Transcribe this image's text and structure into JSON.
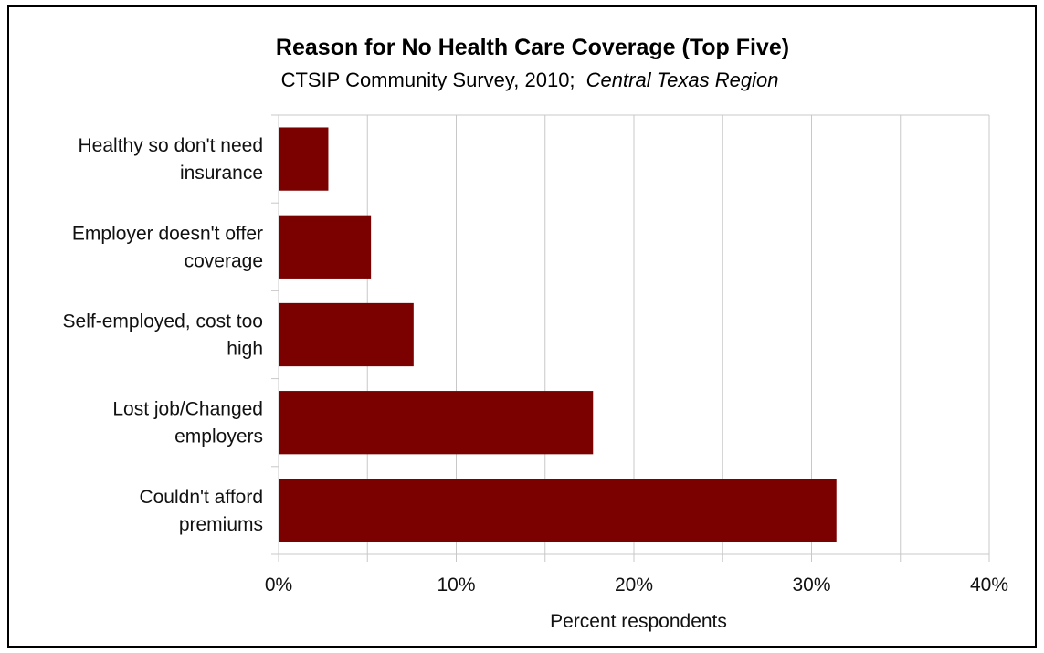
{
  "chart_data": {
    "type": "bar",
    "orientation": "horizontal",
    "title": "Reason for No Health Care Coverage (Top Five)",
    "subtitle": "CTSIP Community Survey, 2010;",
    "subtitle_italic": "Central Texas Region",
    "categories": [
      [
        "Healthy so don't need",
        "insurance"
      ],
      [
        "Employer doesn't offer",
        "coverage"
      ],
      [
        "Self-employed, cost too",
        "high"
      ],
      [
        "Lost job/Changed",
        "employers"
      ],
      [
        "Couldn't afford",
        "premiums"
      ]
    ],
    "values": [
      2.8,
      5.2,
      7.6,
      17.7,
      31.4
    ],
    "xlabel": "Percent respondents",
    "ylabel": "",
    "xlim": [
      0,
      40
    ],
    "x_ticks": [
      0,
      10,
      20,
      30,
      40
    ],
    "x_tick_labels": [
      "0%",
      "10%",
      "20%",
      "30%",
      "40%"
    ],
    "minor_gridlines": [
      5,
      15,
      25,
      35
    ],
    "grid": true,
    "bar_color": "#7b0000",
    "grid_color": "#c8c8c8",
    "legend": "none"
  }
}
